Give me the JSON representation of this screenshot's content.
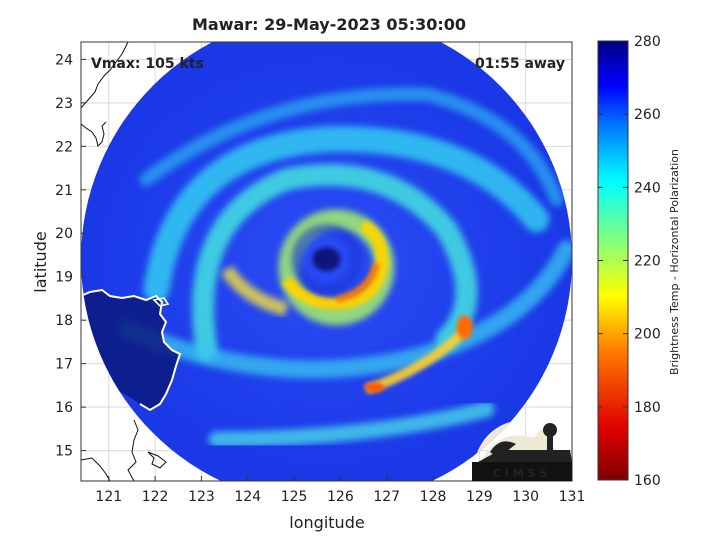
{
  "title": "Mawar: 29-May-2023 05:30:00",
  "vmax_label": "Vmax: 105 kts",
  "time_label": "01:55 away",
  "xlabel": "longitude",
  "ylabel": "latitude",
  "colorbar_label": "Brightness Temp - Horizontal Polarization",
  "logo_text": "CIMSS",
  "colormap": "jet_r",
  "colors": {
    "storm_bg": "#1e3cf0",
    "deep_blue": "#0d1a9e",
    "coast": "#ffffff",
    "land_dark": "#0a1670"
  },
  "chart_data": {
    "type": "heatmap",
    "title": "Mawar: 29-May-2023 05:30:00",
    "xlabel": "longitude",
    "ylabel": "latitude",
    "xlim": [
      120.4,
      131
    ],
    "ylim": [
      14.3,
      24.4
    ],
    "xticks": [
      121,
      122,
      123,
      124,
      125,
      126,
      127,
      128,
      129,
      130,
      131
    ],
    "yticks": [
      15,
      16,
      17,
      18,
      19,
      20,
      21,
      22,
      23,
      24
    ],
    "grid": true,
    "colorbar": {
      "label": "Brightness Temp - Horizontal Polarization",
      "min": 160,
      "max": 280,
      "ticks": [
        160,
        180,
        200,
        220,
        240,
        260,
        280
      ]
    },
    "swath": {
      "center_lon": 125.7,
      "center_lat": 19.4,
      "radius_deg": 5.3
    },
    "eye": {
      "lon": 125.7,
      "lat": 19.4
    },
    "storm": {
      "name": "Mawar",
      "vmax_kts": 105
    }
  }
}
